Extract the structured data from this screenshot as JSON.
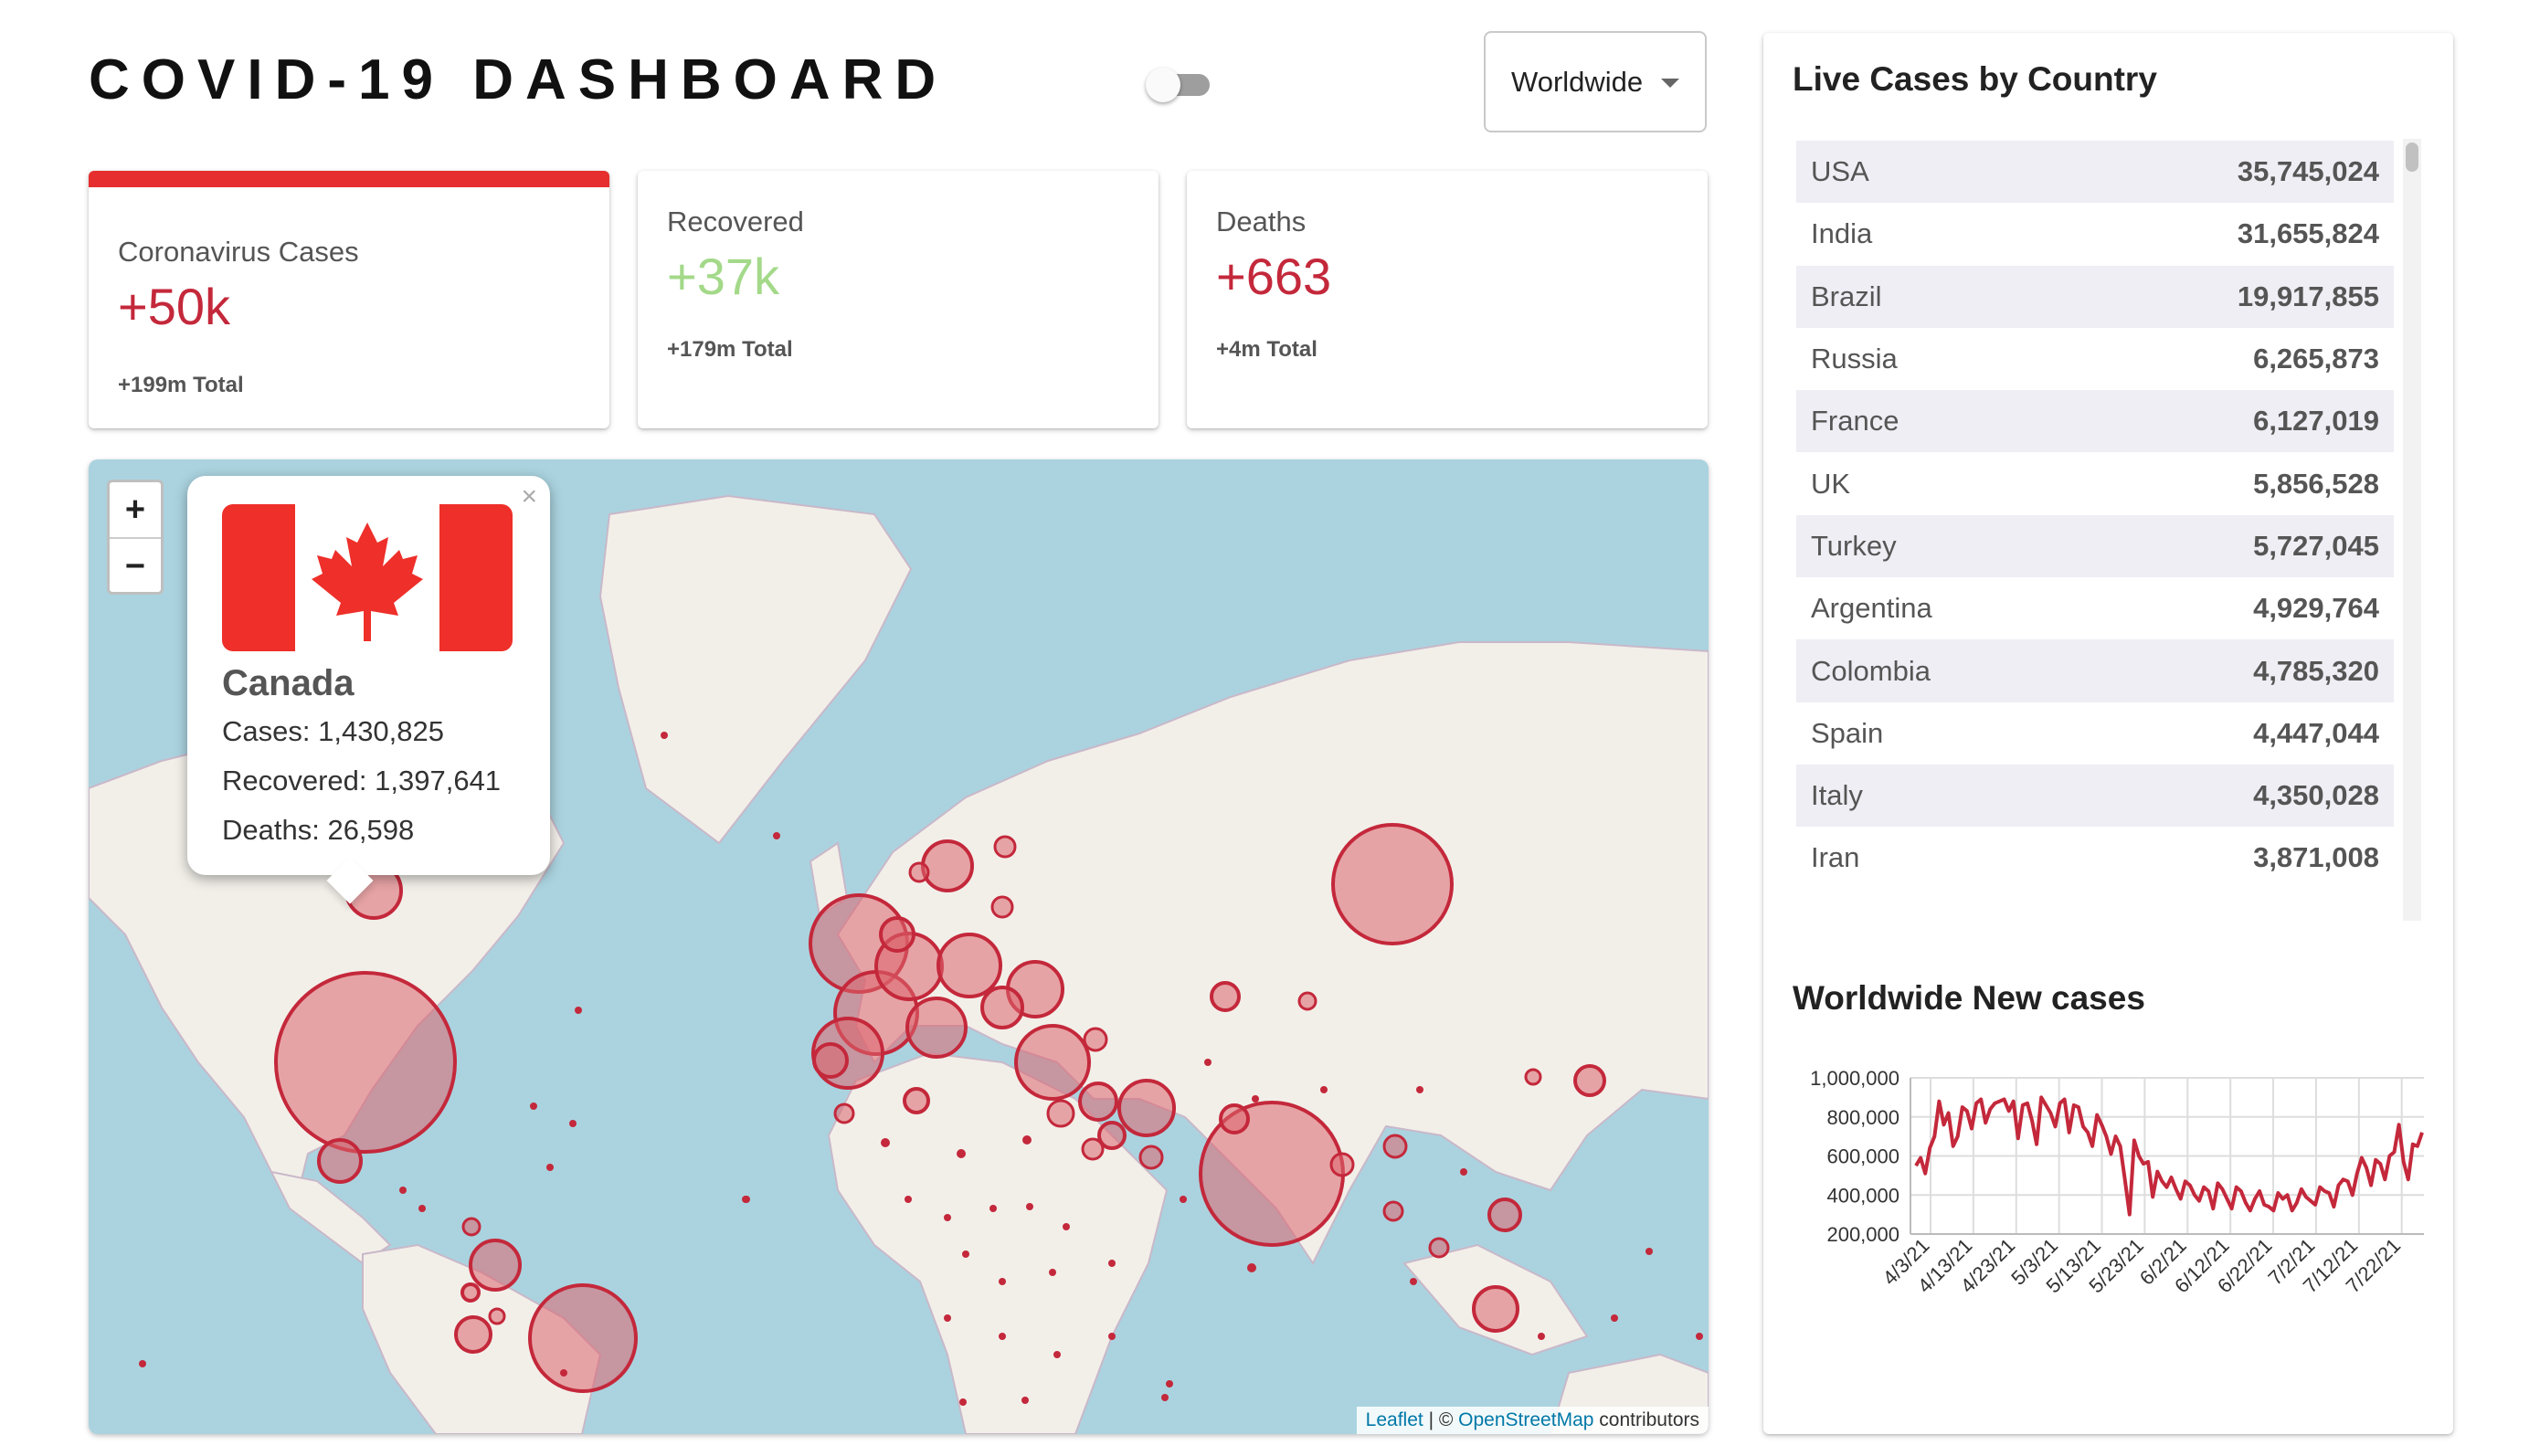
{
  "header": {
    "title": "COVID-19 DASHBOARD",
    "region_select": "Worldwide"
  },
  "cards": [
    {
      "label": "Coronavirus Cases",
      "value": "+50k",
      "total": "+199m Total",
      "color": "#c4283b"
    },
    {
      "label": "Recovered",
      "value": "+37k",
      "total": "+179m Total",
      "color": "#a3d989"
    },
    {
      "label": "Deaths",
      "value": "+663",
      "total": "+4m Total",
      "color": "#c4283b"
    }
  ],
  "map": {
    "zoom_in": "+",
    "zoom_out": "−",
    "popup": {
      "country": "Canada",
      "cases": "Cases: 1,430,825",
      "recovered": "Recovered: 1,397,641",
      "deaths": "Deaths: 26,598",
      "close": "×"
    },
    "attribution": {
      "leaflet": "Leaflet",
      "sep": " | © ",
      "osm": "OpenStreetMap",
      "suffix": " contributors"
    }
  },
  "table": {
    "title": "Live Cases by Country",
    "rows": [
      {
        "country": "USA",
        "cases": "35,745,024"
      },
      {
        "country": "India",
        "cases": "31,655,824"
      },
      {
        "country": "Brazil",
        "cases": "19,917,855"
      },
      {
        "country": "Russia",
        "cases": "6,265,873"
      },
      {
        "country": "France",
        "cases": "6,127,019"
      },
      {
        "country": "UK",
        "cases": "5,856,528"
      },
      {
        "country": "Turkey",
        "cases": "5,727,045"
      },
      {
        "country": "Argentina",
        "cases": "4,929,764"
      },
      {
        "country": "Colombia",
        "cases": "4,785,320"
      },
      {
        "country": "Spain",
        "cases": "4,447,044"
      },
      {
        "country": "Italy",
        "cases": "4,350,028"
      },
      {
        "country": "Iran",
        "cases": "3,871,008"
      }
    ]
  },
  "chart_data": {
    "type": "line",
    "title": "Worldwide New cases",
    "xlabel": "",
    "ylabel": "",
    "ylim": [
      200000,
      1000000
    ],
    "y_ticks": [
      "200,000",
      "400,000",
      "600,000",
      "800,000",
      "1,000,000"
    ],
    "x_ticks": [
      "4/3/21",
      "4/13/21",
      "4/23/21",
      "5/3/21",
      "5/13/21",
      "5/23/21",
      "6/2/21",
      "6/12/21",
      "6/22/21",
      "7/2/21",
      "7/12/21",
      "7/22/21"
    ],
    "grid": true,
    "color": "#c4283b",
    "series": [
      {
        "values": [
          550000,
          590000,
          510000,
          640000,
          700000,
          880000,
          760000,
          820000,
          650000,
          700000,
          850000,
          830000,
          740000,
          870000,
          890000,
          770000,
          840000,
          870000,
          880000,
          890000,
          830000,
          880000,
          690000,
          860000,
          870000,
          780000,
          660000,
          900000,
          860000,
          820000,
          750000,
          870000,
          890000,
          720000,
          860000,
          850000,
          750000,
          720000,
          650000,
          810000,
          760000,
          700000,
          610000,
          700000,
          650000,
          480000,
          300000,
          680000,
          600000,
          560000,
          570000,
          390000,
          520000,
          470000,
          440000,
          490000,
          430000,
          380000,
          470000,
          450000,
          400000,
          370000,
          440000,
          420000,
          330000,
          460000,
          430000,
          380000,
          330000,
          440000,
          420000,
          360000,
          320000,
          380000,
          420000,
          350000,
          340000,
          320000,
          410000,
          380000,
          400000,
          320000,
          360000,
          430000,
          390000,
          370000,
          350000,
          440000,
          420000,
          410000,
          340000,
          450000,
          480000,
          470000,
          400000,
          510000,
          590000,
          540000,
          450000,
          580000,
          560000,
          480000,
          600000,
          620000,
          760000,
          570000,
          480000,
          660000,
          650000,
          720000
        ]
      }
    ]
  }
}
